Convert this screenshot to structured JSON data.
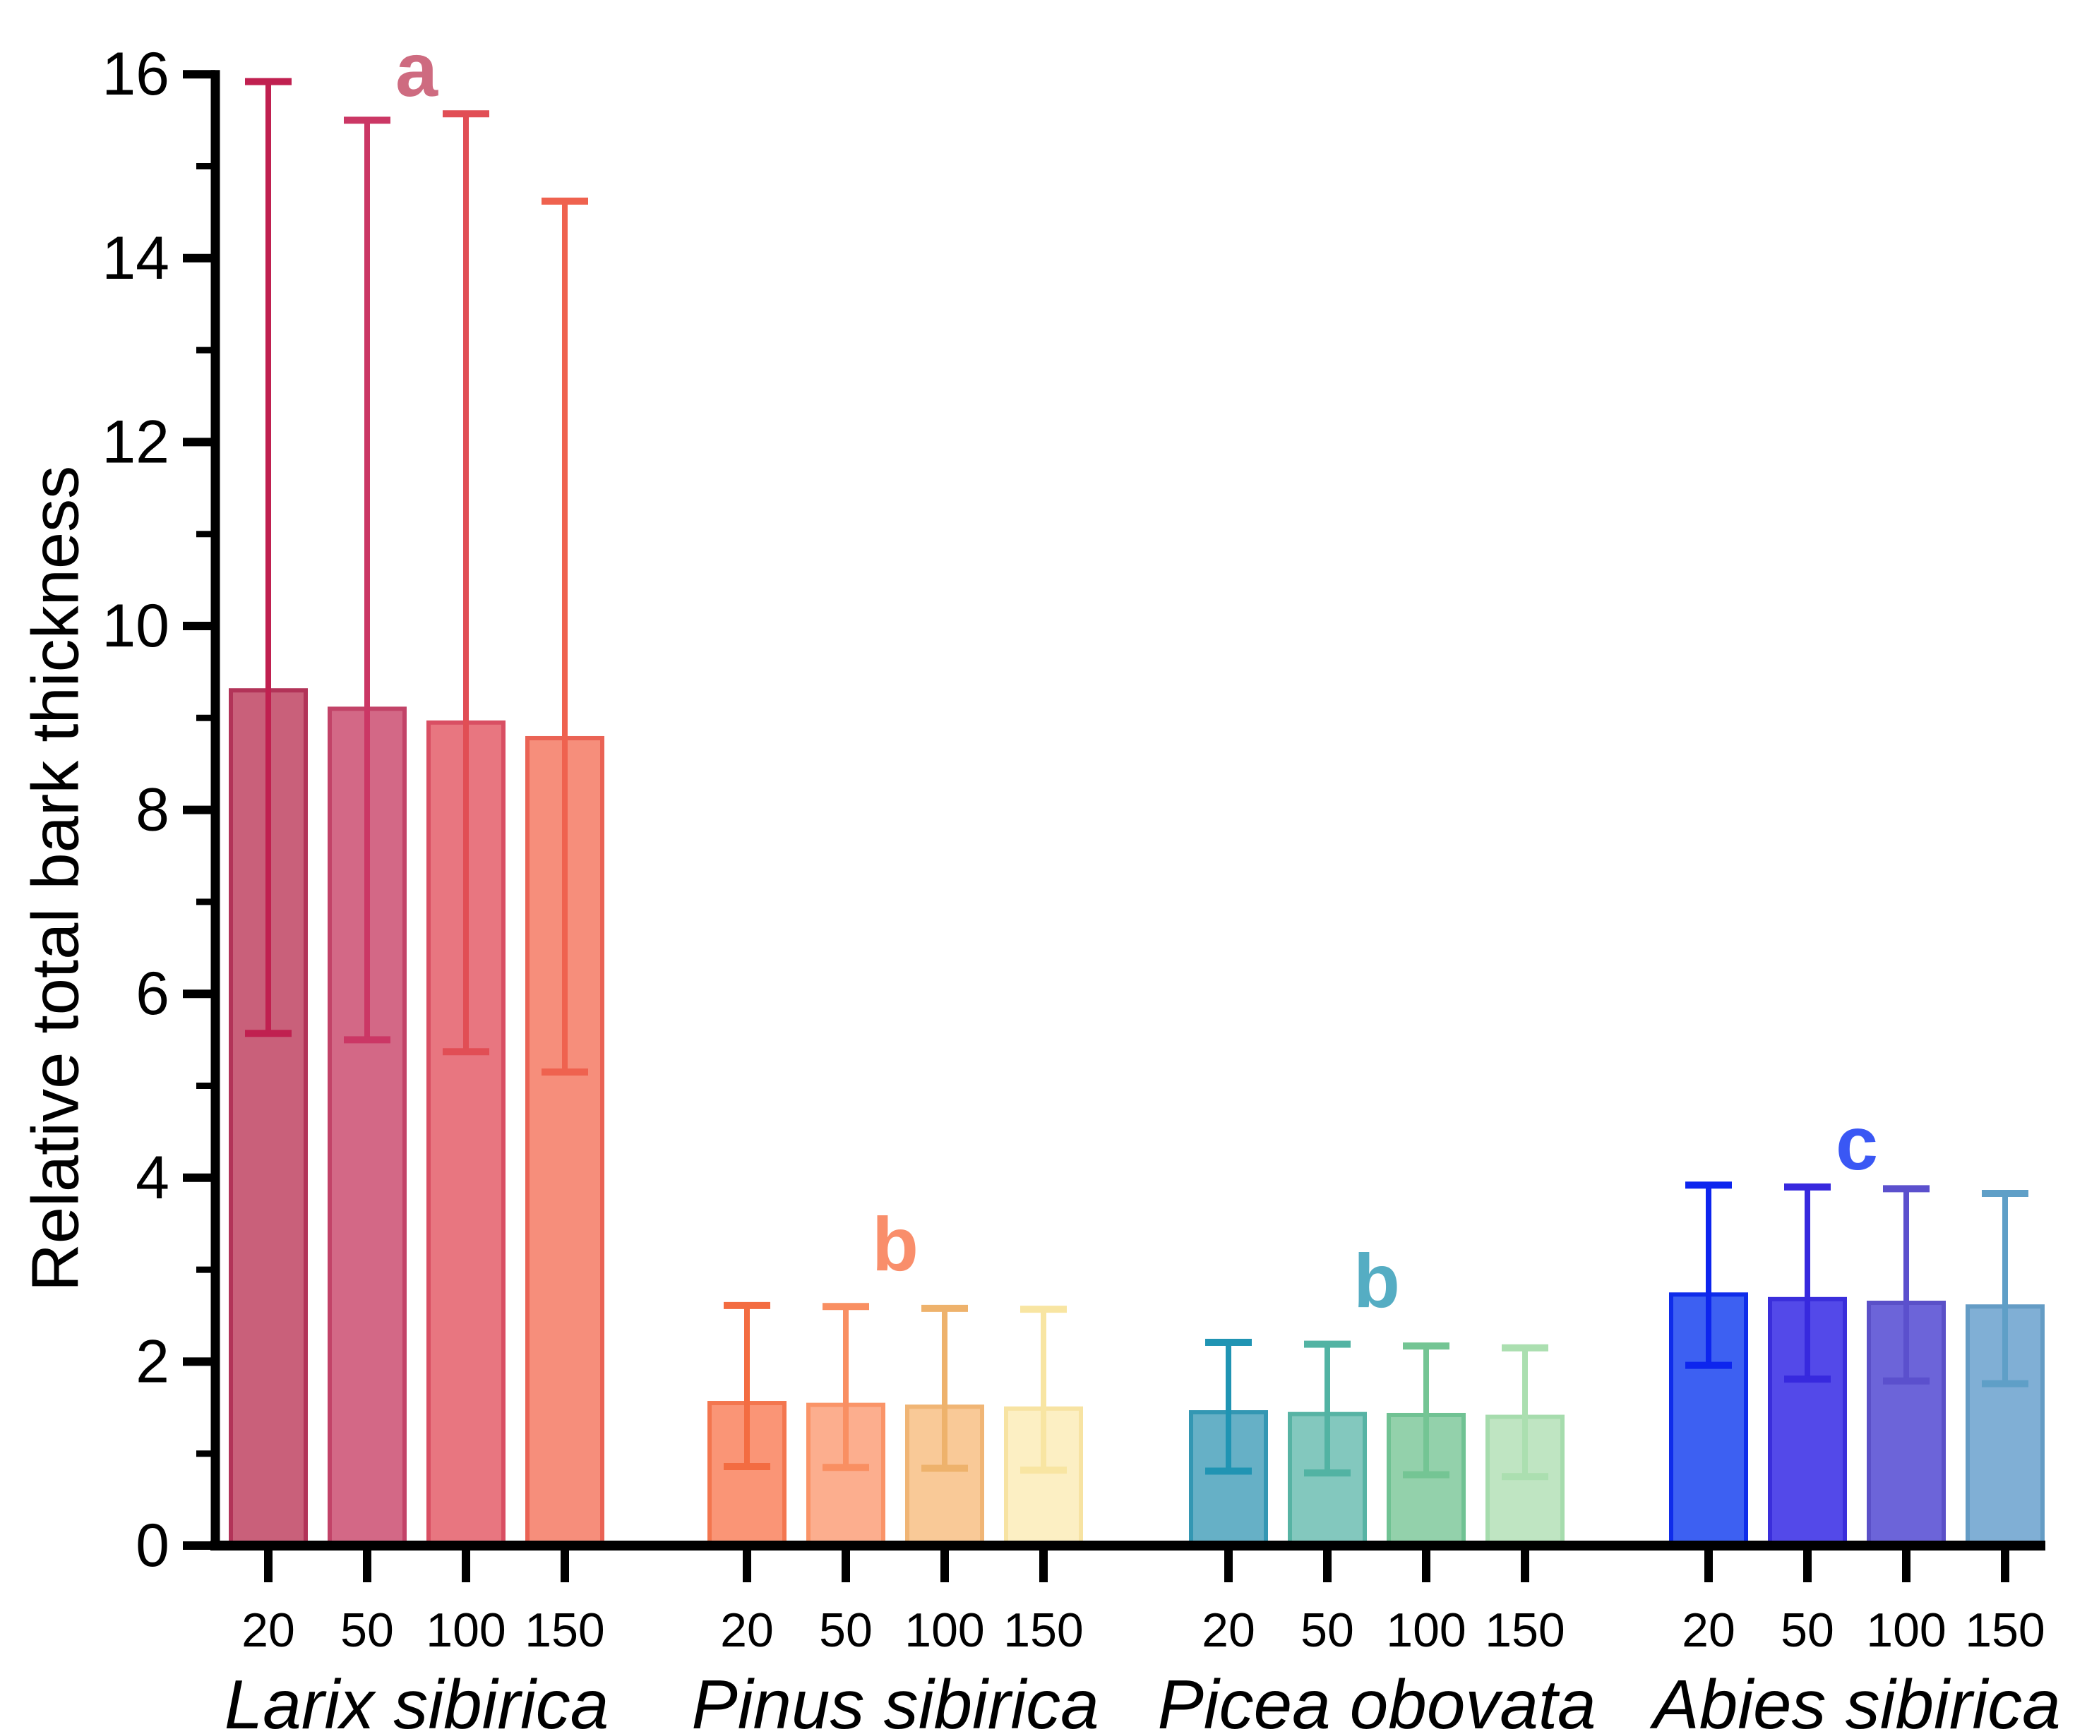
{
  "figure": {
    "background": "#ffffff",
    "axis_color": "#000000",
    "text_color": "#000000"
  },
  "chart_data": {
    "type": "bar",
    "title": "",
    "xlabel": "",
    "ylabel": "Relative total bark thickness",
    "ylim": [
      0,
      16
    ],
    "y_major_ticks": [
      0,
      2,
      4,
      6,
      8,
      10,
      12,
      14,
      16
    ],
    "y_minor_ticks": [
      1,
      3,
      5,
      7,
      9,
      11,
      13,
      15
    ],
    "grid": "off",
    "legend": "none",
    "error_bars": "asymmetric, cap style T, drawn over bars",
    "age_categories": [
      "20",
      "50",
      "100",
      "150"
    ],
    "groups": [
      {
        "species": "Larix sibirica",
        "letter": "a",
        "letter_color": "#ce6b80",
        "letter_y_value": 16.05,
        "ages": [
          "20",
          "50",
          "100",
          "150"
        ],
        "values": [
          9.3,
          9.1,
          8.95,
          8.78
        ],
        "err_upper": [
          15.92,
          15.5,
          15.57,
          14.62
        ],
        "err_lower": [
          5.57,
          5.5,
          5.37,
          5.15
        ],
        "bar_fills": [
          "#c9607a",
          "#d36886",
          "#e87680",
          "#f68e7b"
        ],
        "bar_strokes": [
          "#b23358",
          "#c24368",
          "#d94f63",
          "#ea6355"
        ],
        "err_colors": [
          "#c02050",
          "#cb3765",
          "#e14e55",
          "#ef624f"
        ]
      },
      {
        "species": "Pinus sibirica",
        "letter": "b",
        "letter_color": "#f98e6b",
        "letter_y_value": 3.28,
        "ages": [
          "20",
          "50",
          "100",
          "150"
        ],
        "values": [
          1.55,
          1.53,
          1.51,
          1.49
        ],
        "err_upper": [
          2.61,
          2.6,
          2.58,
          2.57
        ],
        "err_lower": [
          0.86,
          0.85,
          0.84,
          0.82
        ],
        "bar_fills": [
          "#fa9576",
          "#fcae8e",
          "#f9c997",
          "#fcefc3"
        ],
        "bar_strokes": [
          "#f3764f",
          "#fa9468",
          "#f0b575",
          "#f7e3a2"
        ],
        "err_colors": [
          "#f36c41",
          "#f98f62",
          "#eeb26c",
          "#f8e5a2"
        ]
      },
      {
        "species": "Picea obovata",
        "letter": "b",
        "letter_color": "#55adc3",
        "letter_y_value": 2.88,
        "ages": [
          "20",
          "50",
          "100",
          "150"
        ],
        "values": [
          1.45,
          1.43,
          1.42,
          1.4
        ],
        "err_upper": [
          2.21,
          2.19,
          2.17,
          2.15
        ],
        "err_lower": [
          0.81,
          0.79,
          0.77,
          0.75
        ],
        "bar_fills": [
          "#66b0c6",
          "#83c8be",
          "#93d1ab",
          "#bfe5c2"
        ],
        "bar_strokes": [
          "#3397b3",
          "#57b3a4",
          "#70c293",
          "#a6dcad"
        ],
        "err_colors": [
          "#2094b3",
          "#52b3a3",
          "#74c594",
          "#abdfb0"
        ]
      },
      {
        "species": "Abies sibirica",
        "letter": "c",
        "letter_color": "#3a57f4",
        "letter_y_value": 4.38,
        "ages": [
          "20",
          "50",
          "100",
          "150"
        ],
        "values": [
          2.73,
          2.68,
          2.64,
          2.6
        ],
        "err_upper": [
          3.92,
          3.9,
          3.88,
          3.83
        ],
        "err_lower": [
          1.96,
          1.81,
          1.79,
          1.76
        ],
        "bar_fills": [
          "#3d60f2",
          "#5349e9",
          "#6c64d9",
          "#80afd5"
        ],
        "bar_strokes": [
          "#0f2cea",
          "#3a2edb",
          "#5a50c8",
          "#649cc5"
        ],
        "err_colors": [
          "#0d25ee",
          "#3729de",
          "#5b50cd",
          "#5f9fc7"
        ]
      }
    ]
  }
}
